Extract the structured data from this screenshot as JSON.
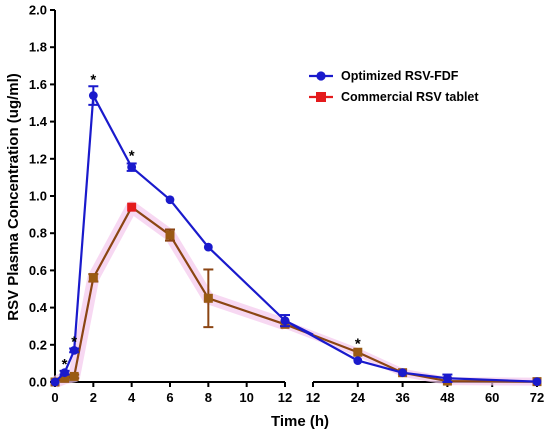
{
  "chart_data": {
    "type": "line",
    "xlabel": "Time (h)",
    "ylabel": "RSV Plasma Concentration (ug/ml)",
    "ylim": [
      0,
      2.0
    ],
    "y_ticks": [
      "0.0",
      "0.2",
      "0.4",
      "0.6",
      "0.8",
      "1.0",
      "1.2",
      "1.4",
      "1.6",
      "1.8",
      "2.0"
    ],
    "x_segments": [
      {
        "range": [
          0,
          12
        ],
        "ticks": [
          "0",
          "2",
          "4",
          "6",
          "8",
          "10",
          "12"
        ]
      },
      {
        "range": [
          12,
          72
        ],
        "ticks": [
          "12",
          "24",
          "36",
          "48",
          "60",
          "72"
        ]
      }
    ],
    "legend_position": "top-right",
    "series": [
      {
        "name": "Optimized RSV-FDF",
        "color": "#1a1acc",
        "marker": "circle",
        "points": [
          {
            "x": 0,
            "y": 0.0,
            "err": 0.0
          },
          {
            "x": 0.5,
            "y": 0.05,
            "err": 0.01
          },
          {
            "x": 1,
            "y": 0.17,
            "err": 0.01
          },
          {
            "x": 2,
            "y": 1.54,
            "err": 0.05
          },
          {
            "x": 4,
            "y": 1.155,
            "err": 0.02
          },
          {
            "x": 6,
            "y": 0.98,
            "err": 0.0
          },
          {
            "x": 8,
            "y": 0.725,
            "err": 0.0
          },
          {
            "x": 12,
            "y": 0.33,
            "err": 0.03
          },
          {
            "x": 24,
            "y": 0.115,
            "err": 0.0
          },
          {
            "x": 36,
            "y": 0.05,
            "err": 0.0
          },
          {
            "x": 48,
            "y": 0.02,
            "err": 0.02
          },
          {
            "x": 72,
            "y": 0.002,
            "err": 0.0
          }
        ]
      },
      {
        "name": "Commercial RSV tablet",
        "color": "#e41a1c",
        "line_color": "#8b4513",
        "marker": "square",
        "points": [
          {
            "x": 0,
            "y": 0.0,
            "err": 0.0
          },
          {
            "x": 0.5,
            "y": 0.02,
            "err": 0.01
          },
          {
            "x": 1,
            "y": 0.03,
            "err": 0.01
          },
          {
            "x": 2,
            "y": 0.56,
            "err": 0.02
          },
          {
            "x": 4,
            "y": 0.94,
            "err": 0.0
          },
          {
            "x": 6,
            "y": 0.79,
            "err": 0.03
          },
          {
            "x": 8,
            "y": 0.45,
            "err": 0.155
          },
          {
            "x": 12,
            "y": 0.31,
            "err": 0.01
          },
          {
            "x": 24,
            "y": 0.16,
            "err": 0.0
          },
          {
            "x": 36,
            "y": 0.05,
            "err": 0.0
          },
          {
            "x": 48,
            "y": 0.005,
            "err": 0.0
          },
          {
            "x": 72,
            "y": 0.002,
            "err": 0.0
          }
        ]
      }
    ],
    "annotations": [
      {
        "text": "*",
        "x": 0.5,
        "y": 0.06
      },
      {
        "text": "*",
        "x": 1,
        "y": 0.18
      },
      {
        "text": "*",
        "x": 2,
        "y": 1.59
      },
      {
        "text": "*",
        "x": 4,
        "y": 1.18
      },
      {
        "text": "*",
        "x": 24,
        "y": 0.17
      }
    ]
  }
}
